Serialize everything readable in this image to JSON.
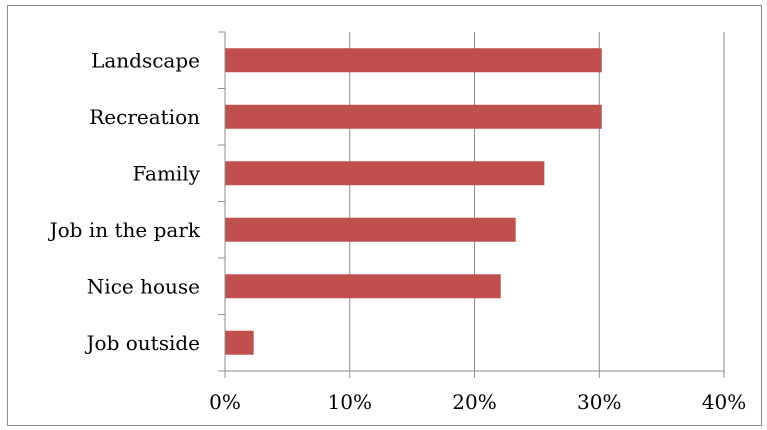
{
  "chart_data": {
    "type": "bar",
    "orientation": "horizontal",
    "categories": [
      "Landscape",
      "Recreation",
      "Family",
      "Job in the park",
      "Nice house",
      "Job outside"
    ],
    "values": [
      30.2,
      30.2,
      25.6,
      23.3,
      22.1,
      2.3
    ],
    "xlim": [
      0,
      40
    ],
    "xticks": [
      0,
      10,
      20,
      30,
      40
    ],
    "tick_format": "percent",
    "title": "",
    "xlabel": "",
    "ylabel": "",
    "grid": "vertical",
    "legend": "none",
    "colors": {
      "bar": "#c0504d",
      "grid": "#8c8c8c",
      "axis": "#8c8c8c",
      "text": "#000000"
    }
  }
}
